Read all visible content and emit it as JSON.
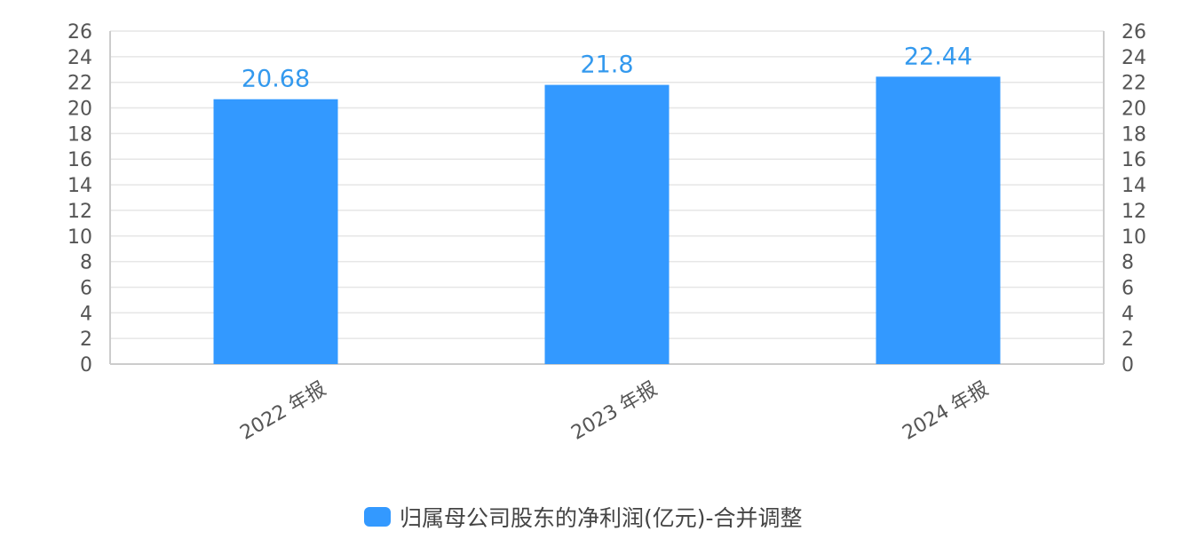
{
  "chart_data": {
    "type": "bar",
    "categories": [
      "2022 年报",
      "2023 年报",
      "2024 年报"
    ],
    "series": [
      {
        "name": "归属母公司股东的净利润(亿元)-合并调整",
        "values": [
          20.68,
          21.8,
          22.44
        ],
        "data_labels": [
          "20.68",
          "21.8",
          "22.44"
        ]
      }
    ],
    "ylim": [
      0,
      26
    ],
    "y_ticks": [
      0,
      2,
      4,
      6,
      8,
      10,
      12,
      14,
      16,
      18,
      20,
      22,
      24,
      26
    ],
    "secondary_y_axis": true,
    "grid": true,
    "legend_position": "bottom",
    "category_label_rotation": "-30deg",
    "colors": {
      "bar": "#3399ff",
      "data_label": "#3399ee",
      "grid": "#e6e6e6",
      "axis": "#cccccc"
    }
  }
}
